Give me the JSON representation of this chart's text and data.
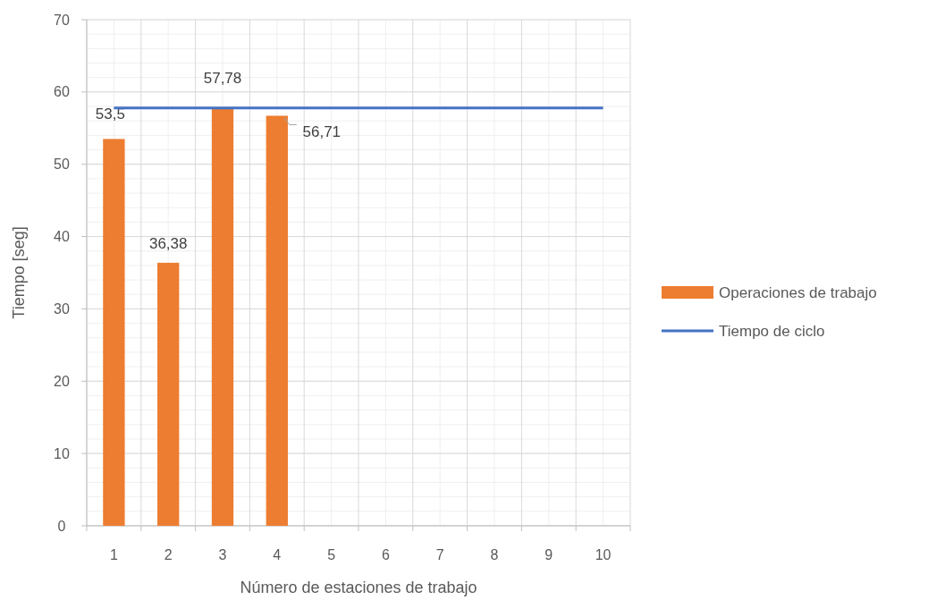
{
  "chart_data": {
    "type": "bar",
    "xlabel": "Número de estaciones de trabajo",
    "ylabel": "Tiempo [seg]",
    "categories": [
      "1",
      "2",
      "3",
      "4",
      "5",
      "6",
      "7",
      "8",
      "9",
      "10"
    ],
    "series": [
      {
        "name": "Operaciones de trabajo",
        "color": "#ed7d31",
        "values": [
          53.5,
          36.38,
          57.78,
          56.71,
          null,
          null,
          null,
          null,
          null,
          null
        ],
        "value_labels": [
          "53,5",
          "36,38",
          "57,78",
          "56,71",
          null,
          null,
          null,
          null,
          null,
          null
        ]
      },
      {
        "name": "Tiempo de ciclo",
        "type": "line",
        "color": "#4472c4",
        "values": [
          57.78,
          57.78,
          57.78,
          57.78,
          57.78,
          57.78,
          57.78,
          57.78,
          57.78,
          57.78
        ]
      }
    ],
    "ylim": [
      0,
      70
    ],
    "yticks": [
      0,
      10,
      20,
      30,
      40,
      50,
      60,
      70
    ],
    "grid": true,
    "legend": "right"
  }
}
